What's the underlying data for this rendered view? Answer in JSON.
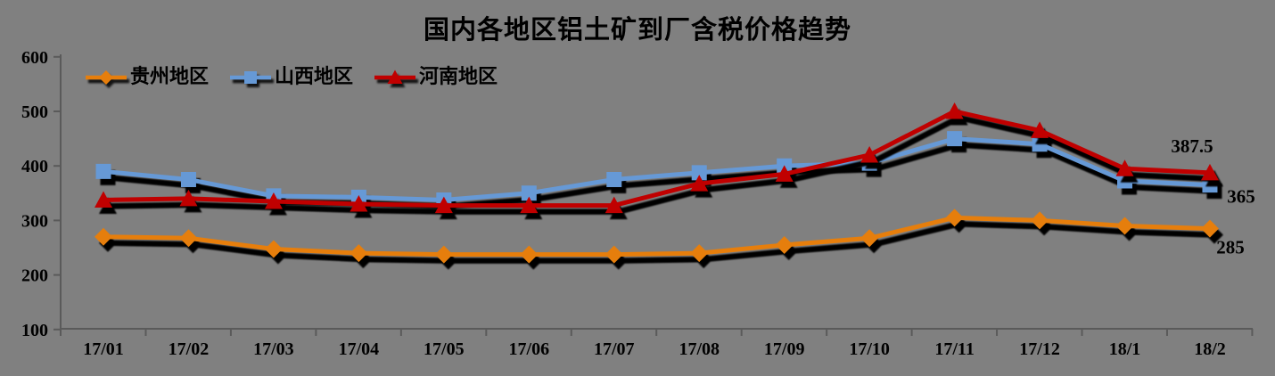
{
  "chart_data": {
    "type": "line",
    "title": "国内各地区铝土矿到厂含税价格趋势",
    "categories": [
      "17/01",
      "17/02",
      "17/03",
      "17/04",
      "17/05",
      "17/06",
      "17/07",
      "17/08",
      "17/09",
      "17/10",
      "17/11",
      "17/12",
      "18/1",
      "18/2"
    ],
    "series": [
      {
        "key": "guizhou",
        "name": "贵州地区",
        "marker": "diamond",
        "color": "#E67E0C",
        "values": [
          270,
          267.5,
          247.5,
          240,
          237.5,
          237.5,
          237.5,
          240,
          255,
          267.5,
          305,
          300,
          290,
          285
        ]
      },
      {
        "key": "shanxi",
        "name": "山西地区",
        "marker": "square",
        "color": "#6699D6",
        "values": [
          390,
          375,
          345,
          342.5,
          337.5,
          350,
          375,
          387.5,
          400,
          405,
          450,
          440,
          372.5,
          365
        ]
      },
      {
        "key": "henan",
        "name": "河南地区",
        "marker": "triangle",
        "color": "#C00000",
        "values": [
          337.5,
          340,
          335,
          330,
          327.5,
          327.5,
          327.5,
          367.5,
          385,
          420,
          500,
          465,
          395,
          387.5
        ]
      }
    ],
    "ylim": [
      100,
      600
    ],
    "yticks": [
      600,
      500,
      400,
      300,
      200,
      100
    ],
    "grid": false,
    "legend_position": "top-left",
    "end_labels": [
      {
        "series_key": "henan",
        "text": "387.5",
        "color": "#C00000"
      },
      {
        "series_key": "shanxi",
        "text": "365",
        "color": "#6699D6"
      },
      {
        "series_key": "guizhou",
        "text": "285",
        "color": "#E67E0C"
      }
    ],
    "background": "#808080",
    "axis_color": "#5a5a5a"
  }
}
